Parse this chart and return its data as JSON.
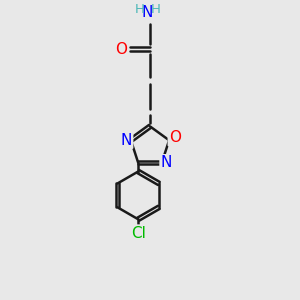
{
  "bg_color": "#e8e8e8",
  "bond_color": "#1a1a1a",
  "bond_width": 1.8,
  "atom_colors": {
    "O": "#ff0000",
    "N": "#0000ff",
    "Cl": "#00bb00",
    "H": "#4db8b8",
    "C": "#1a1a1a"
  },
  "font_size_atoms": 11,
  "font_size_H": 9.5,
  "xlim": [
    -0.6,
    0.6
  ],
  "ylim": [
    -2.6,
    2.0
  ]
}
